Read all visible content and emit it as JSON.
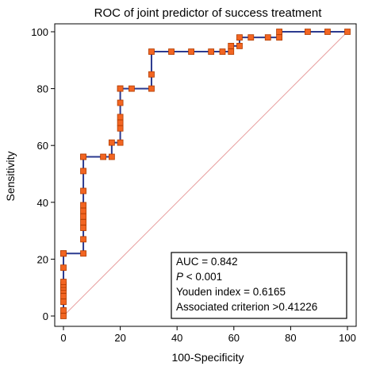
{
  "chart_data": {
    "type": "line",
    "title": "ROC of joint predictor of success treatment",
    "xlabel": "100-Specificity",
    "ylabel": "Sensitivity",
    "xlim": [
      0,
      100
    ],
    "ylim": [
      0,
      100
    ],
    "xticks": [
      0,
      20,
      40,
      60,
      80,
      100
    ],
    "yticks": [
      0,
      20,
      40,
      60,
      80,
      100
    ],
    "grid": false,
    "colors": {
      "curve": "#2b3a8f",
      "marker_fill": "#f26522",
      "marker_edge": "#b23c00",
      "reference_line": "#e8a0a0",
      "axes": "#000000"
    },
    "reference_line": [
      [
        0,
        0
      ],
      [
        100,
        100
      ]
    ],
    "series": [
      {
        "x": [
          0,
          0,
          0,
          0,
          0,
          0,
          0,
          0,
          0,
          0,
          0,
          0,
          7,
          7,
          7,
          7,
          7,
          7,
          7,
          7,
          7,
          7,
          7,
          14,
          17,
          17,
          20,
          20,
          20,
          20,
          20,
          20,
          20,
          24,
          31,
          31,
          31,
          38,
          45,
          52,
          56,
          59,
          59,
          62,
          62,
          66,
          72,
          76,
          76,
          86,
          93,
          100
        ],
        "y": [
          0,
          2,
          5,
          7,
          9,
          10,
          11,
          12,
          17,
          22,
          22,
          22,
          22,
          27,
          31,
          33,
          35,
          37,
          39,
          44,
          51,
          56,
          56,
          56,
          56,
          61,
          61,
          66,
          68,
          70,
          75,
          80,
          80,
          80,
          80,
          85,
          93,
          93,
          93,
          93,
          93,
          93,
          95,
          95,
          98,
          98,
          98,
          98,
          100,
          100,
          100,
          100
        ]
      }
    ],
    "stats": {
      "auc": "AUC = 0.842",
      "p_symbol": "P",
      "p_rest": " < 0.001",
      "youden": "Youden index = 0.6165",
      "criterion": "Associated criterion >0.41226"
    },
    "stats_position": "bottom-right"
  }
}
